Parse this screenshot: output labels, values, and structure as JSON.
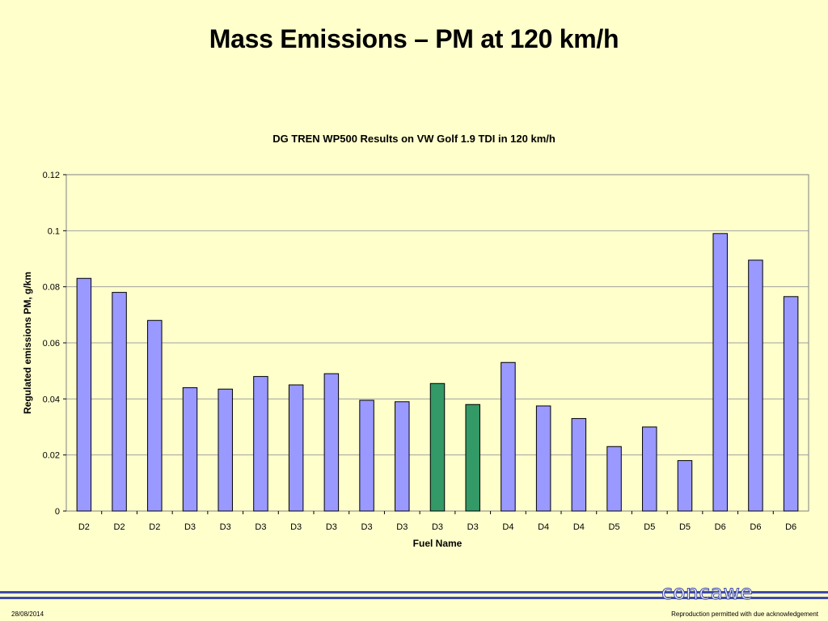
{
  "slide": {
    "title": "Mass Emissions – PM at 120 km/h",
    "date": "28/08/2014",
    "note": "Reproduction permitted with due acknowledgement",
    "logo_text": "concawe"
  },
  "colors": {
    "background": "#ffffcc",
    "bar_default": "#9999ff",
    "bar_highlight": "#339966",
    "footer_line": "#3f4aa8",
    "logo": "#3f4aa8"
  },
  "chart_data": {
    "type": "bar",
    "title": "DG TREN WP500 Results on VW Golf 1.9 TDI in 120 km/h",
    "xlabel": "Fuel Name",
    "ylabel": "Regulated emissions PM, g/km",
    "ylim": [
      0,
      0.12
    ],
    "yticks": [
      0,
      0.02,
      0.04,
      0.06,
      0.08,
      0.1,
      0.12
    ],
    "ytick_labels": [
      "0",
      "0.02",
      "0.04",
      "0.06",
      "0.08",
      "0.1",
      "0.12"
    ],
    "grid": true,
    "categories": [
      "D2",
      "D2",
      "D2",
      "D3",
      "D3",
      "D3",
      "D3",
      "D3",
      "D3",
      "D3",
      "D3",
      "D3",
      "D4",
      "D4",
      "D4",
      "D5",
      "D5",
      "D5",
      "D6",
      "D6",
      "D6"
    ],
    "values": [
      0.083,
      0.078,
      0.068,
      0.044,
      0.0435,
      0.048,
      0.045,
      0.049,
      0.0395,
      0.039,
      0.0455,
      0.038,
      0.053,
      0.0375,
      0.033,
      0.023,
      0.03,
      0.018,
      0.099,
      0.0895,
      0.0765
    ],
    "highlight": [
      false,
      false,
      false,
      false,
      false,
      false,
      false,
      false,
      false,
      false,
      true,
      true,
      false,
      false,
      false,
      false,
      false,
      false,
      false,
      false,
      false
    ]
  }
}
